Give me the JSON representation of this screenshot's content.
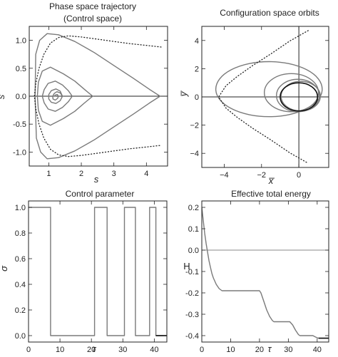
{
  "chart_data": [
    {
      "id": "phase",
      "type": "line",
      "title_line1": "Phase space trajectory",
      "title_line2": "(Control space)",
      "xlabel": "s",
      "ylabel": "ṡ",
      "xlim": [
        0.4,
        4.65
      ],
      "ylim": [
        -1.25,
        1.25
      ],
      "xticks": [
        1,
        2,
        3,
        4
      ],
      "yticks": [
        -1.0,
        -0.5,
        0.0,
        0.5,
        1.0
      ],
      "ytick_labels": [
        "-1.0",
        "-0.5",
        "0.0",
        "0.5",
        "1.0"
      ],
      "axis_lines": {
        "y": 0
      },
      "colors": {
        "trajectory": "#7a7a7a",
        "envelope": "#222222"
      },
      "series": [
        {
          "style": "solid",
          "x": [
            4.42,
            4.1,
            3.6,
            3.0,
            2.4,
            1.8,
            1.3,
            0.95,
            0.72,
            0.6,
            0.58,
            0.62,
            0.75,
            0.95,
            1.3,
            1.8,
            2.4,
            3.0,
            3.6,
            4.1,
            4.42
          ],
          "y": [
            0.0,
            0.12,
            0.32,
            0.55,
            0.78,
            0.98,
            1.1,
            1.12,
            1.0,
            0.75,
            0.0,
            -0.75,
            -1.0,
            -1.12,
            -1.1,
            -0.98,
            -0.78,
            -0.55,
            -0.32,
            -0.12,
            0.0
          ]
        },
        {
          "style": "solid",
          "x": [
            2.35,
            2.1,
            1.8,
            1.45,
            1.05,
            0.8,
            0.68,
            0.65,
            0.68,
            0.8,
            1.05,
            1.45,
            1.8,
            2.1,
            2.35
          ],
          "y": [
            0.0,
            0.12,
            0.27,
            0.4,
            0.52,
            0.45,
            0.25,
            0.0,
            -0.25,
            -0.45,
            -0.52,
            -0.4,
            -0.27,
            -0.12,
            0.0
          ]
        },
        {
          "style": "solid",
          "x": [
            1.72,
            1.6,
            1.42,
            1.2,
            0.98,
            0.86,
            0.8,
            0.86,
            0.98,
            1.2,
            1.42,
            1.6,
            1.72
          ],
          "y": [
            0.0,
            0.1,
            0.2,
            0.27,
            0.23,
            0.12,
            0.0,
            -0.12,
            -0.23,
            -0.27,
            -0.2,
            -0.1,
            0.0
          ]
        },
        {
          "style": "solid",
          "x": [
            1.42,
            1.35,
            1.22,
            1.08,
            1.0,
            1.0,
            1.08,
            1.22,
            1.35,
            1.42,
            1.35,
            1.25,
            1.17,
            1.12,
            1.13,
            1.2,
            1.27,
            1.3,
            1.26,
            1.2,
            1.17,
            1.2
          ],
          "y": [
            0.0,
            0.09,
            0.13,
            0.1,
            0.03,
            -0.05,
            -0.11,
            -0.13,
            -0.08,
            0.0,
            0.06,
            0.08,
            0.05,
            0.0,
            -0.05,
            -0.07,
            -0.04,
            0.0,
            0.03,
            0.02,
            0.0,
            0.0
          ]
        },
        {
          "style": "dotted",
          "x": [
            4.45,
            4.0,
            3.5,
            3.0,
            2.5,
            2.0,
            1.6,
            1.3,
            1.05,
            0.85,
            0.7,
            0.6,
            0.56,
            0.6,
            0.7,
            0.85,
            1.05,
            1.3,
            1.6,
            2.0,
            2.5,
            3.0,
            3.5,
            4.0,
            4.45
          ],
          "y": [
            0.88,
            0.91,
            0.94,
            0.98,
            1.02,
            1.06,
            1.08,
            1.05,
            0.95,
            0.75,
            0.5,
            0.22,
            0.0,
            -0.22,
            -0.5,
            -0.75,
            -0.95,
            -1.05,
            -1.08,
            -1.06,
            -1.02,
            -0.98,
            -0.94,
            -0.91,
            -0.88
          ]
        }
      ]
    },
    {
      "id": "orbits",
      "type": "line",
      "title": "Configuration space orbits",
      "xlabel": "x̅",
      "ylabel": "y̅",
      "xlim": [
        -5.2,
        1.6
      ],
      "ylim": [
        -5.0,
        5.0
      ],
      "xticks": [
        -4,
        -2,
        0
      ],
      "yticks": [
        -4,
        -2,
        0,
        2,
        4
      ],
      "tick_labels_x": [
        "−4",
        "−2",
        "0"
      ],
      "tick_labels_y": [
        "−4",
        "−2",
        "0",
        "2",
        "4"
      ],
      "axis_lines": {
        "x": 0,
        "y": 0
      },
      "colors": {
        "orbit": "#7a7a7a",
        "final_orbit": "#111111",
        "envelope": "#222222"
      },
      "series": [
        {
          "style": "solid",
          "kind": "ellipse",
          "cx": -1.6,
          "cy": 0.55,
          "rx": 2.85,
          "ry": 1.95,
          "color_key": "orbit"
        },
        {
          "style": "solid",
          "kind": "ellipse",
          "cx": -0.4,
          "cy": 0.3,
          "rx": 1.45,
          "ry": 1.35,
          "color_key": "orbit"
        },
        {
          "style": "solid",
          "kind": "ellipse",
          "cx": -0.05,
          "cy": 0.1,
          "rx": 1.15,
          "ry": 1.15,
          "color_key": "orbit"
        },
        {
          "style": "solid",
          "kind": "ellipse",
          "cx": 0.1,
          "cy": 0.05,
          "rx": 1.05,
          "ry": 1.05,
          "color_key": "orbit"
        },
        {
          "style": "solid",
          "kind": "ellipse",
          "cx": 0.0,
          "cy": 0.0,
          "rx": 1.0,
          "ry": 1.0,
          "color_key": "final_orbit"
        },
        {
          "style": "dotted",
          "kind": "polyline",
          "x": [
            0.5,
            -0.5,
            -1.5,
            -2.5,
            -3.3,
            -3.9,
            -4.3,
            -3.9,
            -3.3,
            -2.5,
            -1.5,
            -0.5,
            0.5
          ],
          "y": [
            4.7,
            3.95,
            3.05,
            2.2,
            1.45,
            0.8,
            0.0,
            -0.8,
            -1.45,
            -2.2,
            -3.05,
            -3.95,
            -4.7
          ]
        }
      ]
    },
    {
      "id": "control",
      "type": "line",
      "title": "Control parameter",
      "xlabel": "τ",
      "ylabel": "σ",
      "xlim": [
        0,
        44
      ],
      "ylim": [
        -0.05,
        1.05
      ],
      "xticks": [
        0,
        10,
        20,
        30,
        40
      ],
      "yticks": [
        0.0,
        0.2,
        0.4,
        0.6,
        0.8,
        1.0
      ],
      "ytick_labels": [
        "0.0",
        "0.2",
        "0.4",
        "0.6",
        "0.8",
        "1.0"
      ],
      "colors": {
        "line": "#7a7a7a",
        "final": "#111111"
      },
      "series": [
        {
          "style": "solid",
          "x": [
            0,
            7,
            7,
            21,
            21,
            25,
            25,
            30.5,
            30.5,
            34,
            34,
            38.5,
            38.5,
            40.5,
            40.5,
            44
          ],
          "y": [
            1,
            1,
            0,
            0,
            1,
            1,
            0,
            0,
            1,
            1,
            0,
            0,
            1,
            1,
            0,
            0
          ]
        }
      ]
    },
    {
      "id": "energy",
      "type": "line",
      "title": "Effective total energy",
      "xlabel": "τ",
      "ylabel": "H",
      "xlim": [
        0,
        44
      ],
      "ylim": [
        -0.43,
        0.23
      ],
      "xticks": [
        0,
        10,
        20,
        30,
        40
      ],
      "yticks": [
        -0.4,
        -0.3,
        -0.2,
        -0.1,
        0.0,
        0.1,
        0.2
      ],
      "ytick_labels": [
        "-0.4",
        "-0.3",
        "-0.2",
        "-0.1",
        "0.0",
        "0.1",
        "0.2"
      ],
      "axis_lines": {
        "y": 0
      },
      "colors": {
        "line": "#7a7a7a",
        "zero": "#8a8a8a"
      },
      "series": [
        {
          "style": "solid",
          "x": [
            0,
            0.5,
            1,
            1.5,
            2,
            2.5,
            3,
            3.5,
            4,
            5,
            6,
            7,
            10,
            15,
            20,
            20.5,
            21.5,
            22.5,
            23.5,
            24.5,
            25,
            28,
            30.5,
            31.5,
            32.5,
            33.5,
            34,
            36,
            38.5,
            39.2,
            40,
            40.5,
            44
          ],
          "y": [
            0.2,
            0.14,
            0.08,
            0.03,
            -0.01,
            -0.05,
            -0.08,
            -0.11,
            -0.13,
            -0.16,
            -0.18,
            -0.19,
            -0.19,
            -0.19,
            -0.19,
            -0.2,
            -0.24,
            -0.28,
            -0.31,
            -0.33,
            -0.335,
            -0.335,
            -0.335,
            -0.35,
            -0.375,
            -0.395,
            -0.4,
            -0.4,
            -0.4,
            -0.405,
            -0.41,
            -0.412,
            -0.412
          ]
        }
      ]
    }
  ]
}
